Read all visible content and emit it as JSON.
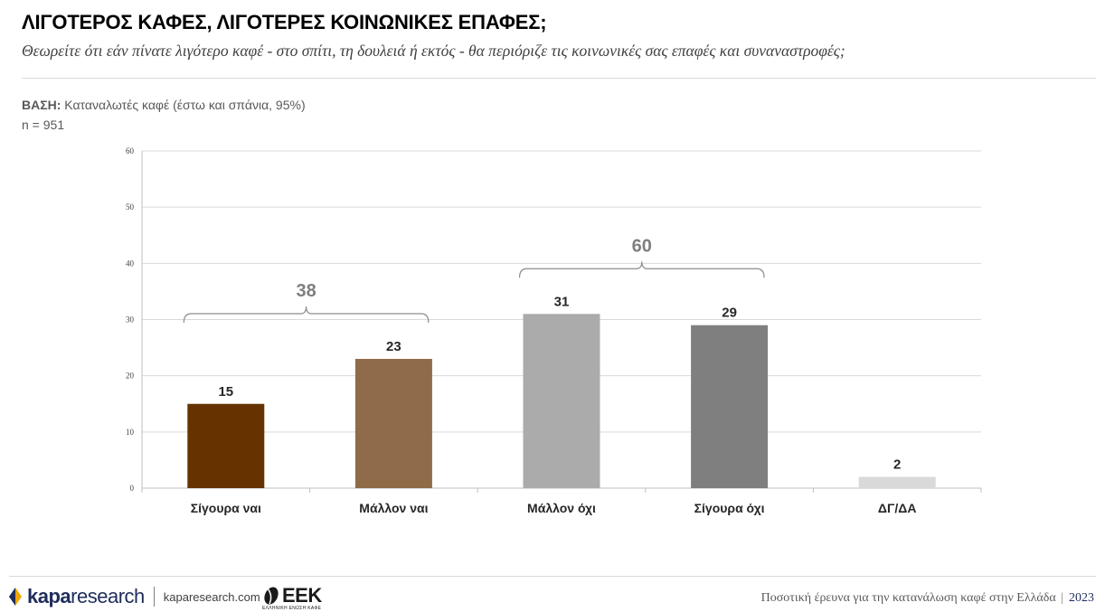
{
  "header": {
    "title": "ΛΙΓΟΤΕΡΟΣ ΚΑΦΕΣ, ΛΙΓΟΤΕΡΕΣ ΚΟΙΝΩΝΙΚΕΣ ΕΠΑΦΕΣ;",
    "subtitle": "Θεωρείτε ότι εάν πίνατε λιγότερο καφέ - στο σπίτι, τη δουλειά ή εκτός - θα περιόριζε τις κοινωνικές σας επαφές και συναναστροφές;",
    "base_label": "ΒΑΣΗ:",
    "base_text": "Καταναλωτές καφέ (έστω και σπάνια, 95%)",
    "sample": "n = 951"
  },
  "chart_data": {
    "type": "bar",
    "categories": [
      "Σίγουρα ναι",
      "Μάλλον ναι",
      "Μάλλον όχι",
      "Σίγουρα όχι",
      "ΔΓ/ΔΑ"
    ],
    "values": [
      15,
      23,
      31,
      29,
      2
    ],
    "data_labels": [
      "15",
      "23",
      "31",
      "29",
      "2"
    ],
    "colors": [
      "#663300",
      "#8f6b4a",
      "#ababab",
      "#7f7f7f",
      "#d9d9d9"
    ],
    "ylim": [
      0,
      60
    ],
    "yticks": [
      0,
      10,
      20,
      30,
      40,
      50,
      60
    ],
    "grid": true,
    "groups": [
      {
        "label": "38",
        "from": 0,
        "to": 1
      },
      {
        "label": "60",
        "from": 2,
        "to": 3
      }
    ],
    "label_color": "#262626",
    "group_label_color": "#7f7f7f",
    "bracket_color": "#8c8c8c",
    "grid_color": "#d9d9d9"
  },
  "footer": {
    "brand_bold": "kapa",
    "brand_light": "research",
    "site": "kaparesearch.com",
    "partner_name": "ΕΕΚ",
    "partner_sub": "ΕΛΛΗΝΙΚΗ ΕΝΩΣΗ ΚΑΦΕ",
    "survey_text": "Ποσοτική έρευνα για την κατανάλωση καφέ στην Ελλάδα",
    "year": "2023"
  }
}
